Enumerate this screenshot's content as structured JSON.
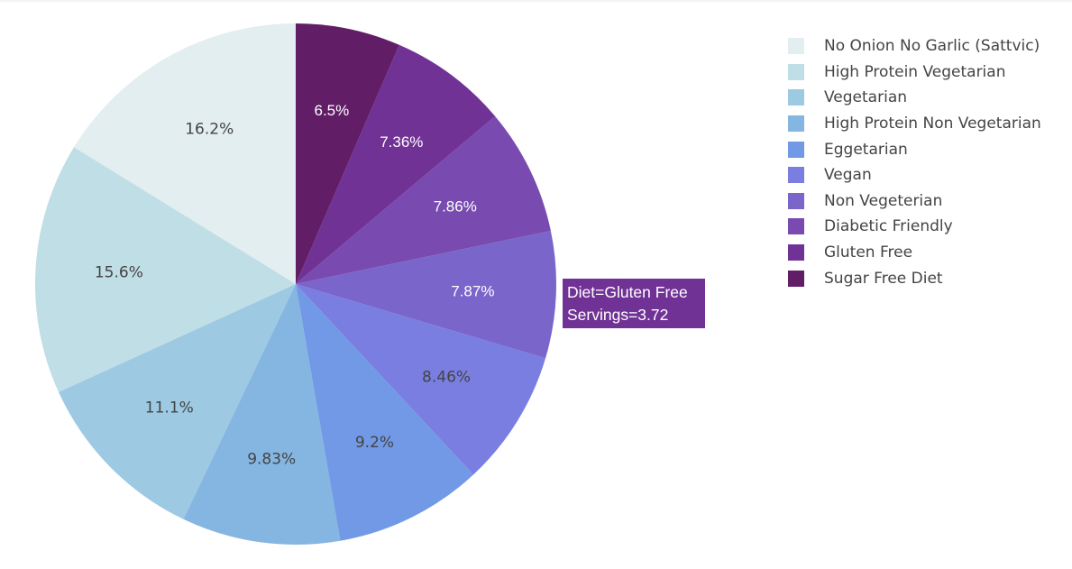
{
  "chart_data": {
    "type": "pie",
    "title": "",
    "categories": [
      "No Onion No Garlic (Sattvic)",
      "High Protein Vegetarian",
      "Vegetarian",
      "High Protein Non Vegetarian",
      "Eggetarian",
      "Vegan",
      "Non Vegeterian",
      "Diabetic Friendly",
      "Gluten Free",
      "Sugar Free Diet"
    ],
    "values": [
      16.2,
      15.6,
      11.1,
      9.83,
      9.2,
      8.46,
      7.87,
      7.86,
      7.36,
      6.5
    ],
    "labels": [
      "16.2%",
      "15.6%",
      "11.1%",
      "9.83%",
      "9.2%",
      "8.46%",
      "7.87%",
      "7.86%",
      "7.36%",
      "6.5%"
    ],
    "colors": [
      "#e3eef0",
      "#c0dee5",
      "#9dc9e2",
      "#85b5e1",
      "#7199e5",
      "#7a7ee0",
      "#7a65cb",
      "#794bb0",
      "#713296",
      "#621d67"
    ],
    "label_colors": [
      "#444444",
      "#444444",
      "#444444",
      "#444444",
      "#444444",
      "#444444",
      "#ffffff",
      "#ffffff",
      "#ffffff",
      "#ffffff"
    ],
    "legend_position": "top-right",
    "sort": "descending",
    "direction": "counterclockwise"
  },
  "tooltip": {
    "line1": "Diet=Gluten Free",
    "line2": "Servings=3.72",
    "color": "#713296"
  }
}
